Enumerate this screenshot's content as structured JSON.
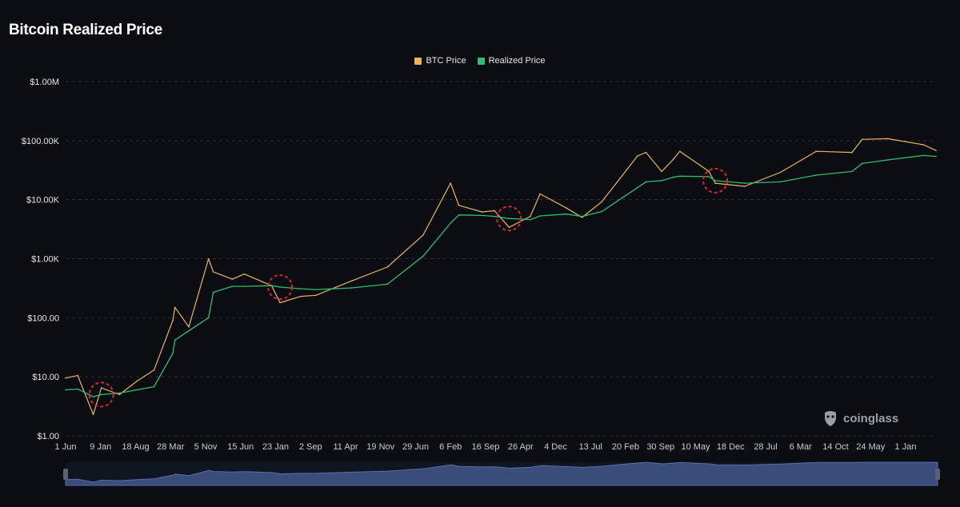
{
  "title": "Bitcoin Realized Price",
  "legend": {
    "btc_label": "BTC Price",
    "realized_label": "Realized Price"
  },
  "colors": {
    "background": "#0b0d13",
    "btc": "#e8b65a",
    "realized": "#2fbf71",
    "grid": "#2b2f38",
    "annotation": "#d22b2b",
    "navigator": "#3a4c7a"
  },
  "watermark": {
    "icon": "coinglass-logo-icon",
    "text": "coinglass"
  },
  "chart_data": {
    "type": "line",
    "title": "Bitcoin Realized Price",
    "y_scale": "log",
    "ylim": [
      1,
      1000000
    ],
    "grid": true,
    "legend_position": "top-center",
    "y_ticks": [
      "$1.00",
      "$10.00",
      "$100.00",
      "$1.00K",
      "$10.00K",
      "$100.00K",
      "$1.00M"
    ],
    "x_ticks": [
      "1 Jun",
      "9 Jan",
      "18 Aug",
      "28 Mar",
      "5 Nov",
      "15 Jun",
      "23 Jan",
      "2 Sep",
      "11 Apr",
      "19 Nov",
      "29 Jun",
      "6 Feb",
      "16 Sep",
      "26 Apr",
      "4 Dec",
      "13 Jul",
      "20 Feb",
      "30 Sep",
      "10 May",
      "18 Dec",
      "28 Jul",
      "6 Mar",
      "14 Oct",
      "24 May",
      "1 Jan"
    ],
    "x": [
      "2011-06-01",
      "2011-08-15",
      "2011-11-20",
      "2012-01-09",
      "2012-05-01",
      "2012-08-18",
      "2012-12-01",
      "2013-03-28",
      "2013-04-10",
      "2013-07-05",
      "2013-11-05",
      "2013-12-04",
      "2014-04-01",
      "2014-06-15",
      "2014-12-01",
      "2015-01-23",
      "2015-06-01",
      "2015-09-02",
      "2016-04-11",
      "2016-11-19",
      "2017-06-29",
      "2017-12-17",
      "2018-02-06",
      "2018-06-30",
      "2018-09-16",
      "2018-12-15",
      "2019-04-26",
      "2019-06-26",
      "2019-12-04",
      "2020-03-13",
      "2020-07-13",
      "2021-02-20",
      "2021-04-14",
      "2021-07-20",
      "2021-09-30",
      "2021-11-10",
      "2022-05-10",
      "2022-06-18",
      "2022-12-18",
      "2023-07-28",
      "2024-03-06",
      "2024-10-14",
      "2024-12-17",
      "2025-05-24",
      "2026-01-01",
      "2026-03-20"
    ],
    "series": [
      {
        "name": "BTC Price",
        "values": [
          9.5,
          10.5,
          2.3,
          6.5,
          5,
          8.5,
          13,
          90,
          150,
          70,
          1000,
          600,
          450,
          550,
          350,
          180,
          230,
          240,
          420,
          720,
          2500,
          19000,
          8000,
          6200,
          6500,
          3400,
          5200,
          12500,
          7300,
          5000,
          9200,
          55000,
          63000,
          30000,
          48000,
          66000,
          30000,
          19000,
          16800,
          29000,
          66000,
          63000,
          105000,
          108000,
          85000,
          68000
        ]
      },
      {
        "name": "Realized Price",
        "values": [
          6,
          6.2,
          4.6,
          5,
          5.3,
          6,
          6.8,
          25,
          42,
          60,
          100,
          270,
          340,
          340,
          350,
          330,
          310,
          300,
          320,
          370,
          1100,
          4000,
          5500,
          5400,
          5200,
          4800,
          4600,
          5300,
          5700,
          5200,
          6300,
          16000,
          20000,
          21000,
          24000,
          25000,
          24500,
          21000,
          19000,
          20000,
          26000,
          30000,
          41000,
          47000,
          56000,
          54000
        ]
      }
    ],
    "annotations": [
      "2012-01-09",
      "2015-01-23",
      "2018-12-15",
      "2022-06-18"
    ]
  }
}
